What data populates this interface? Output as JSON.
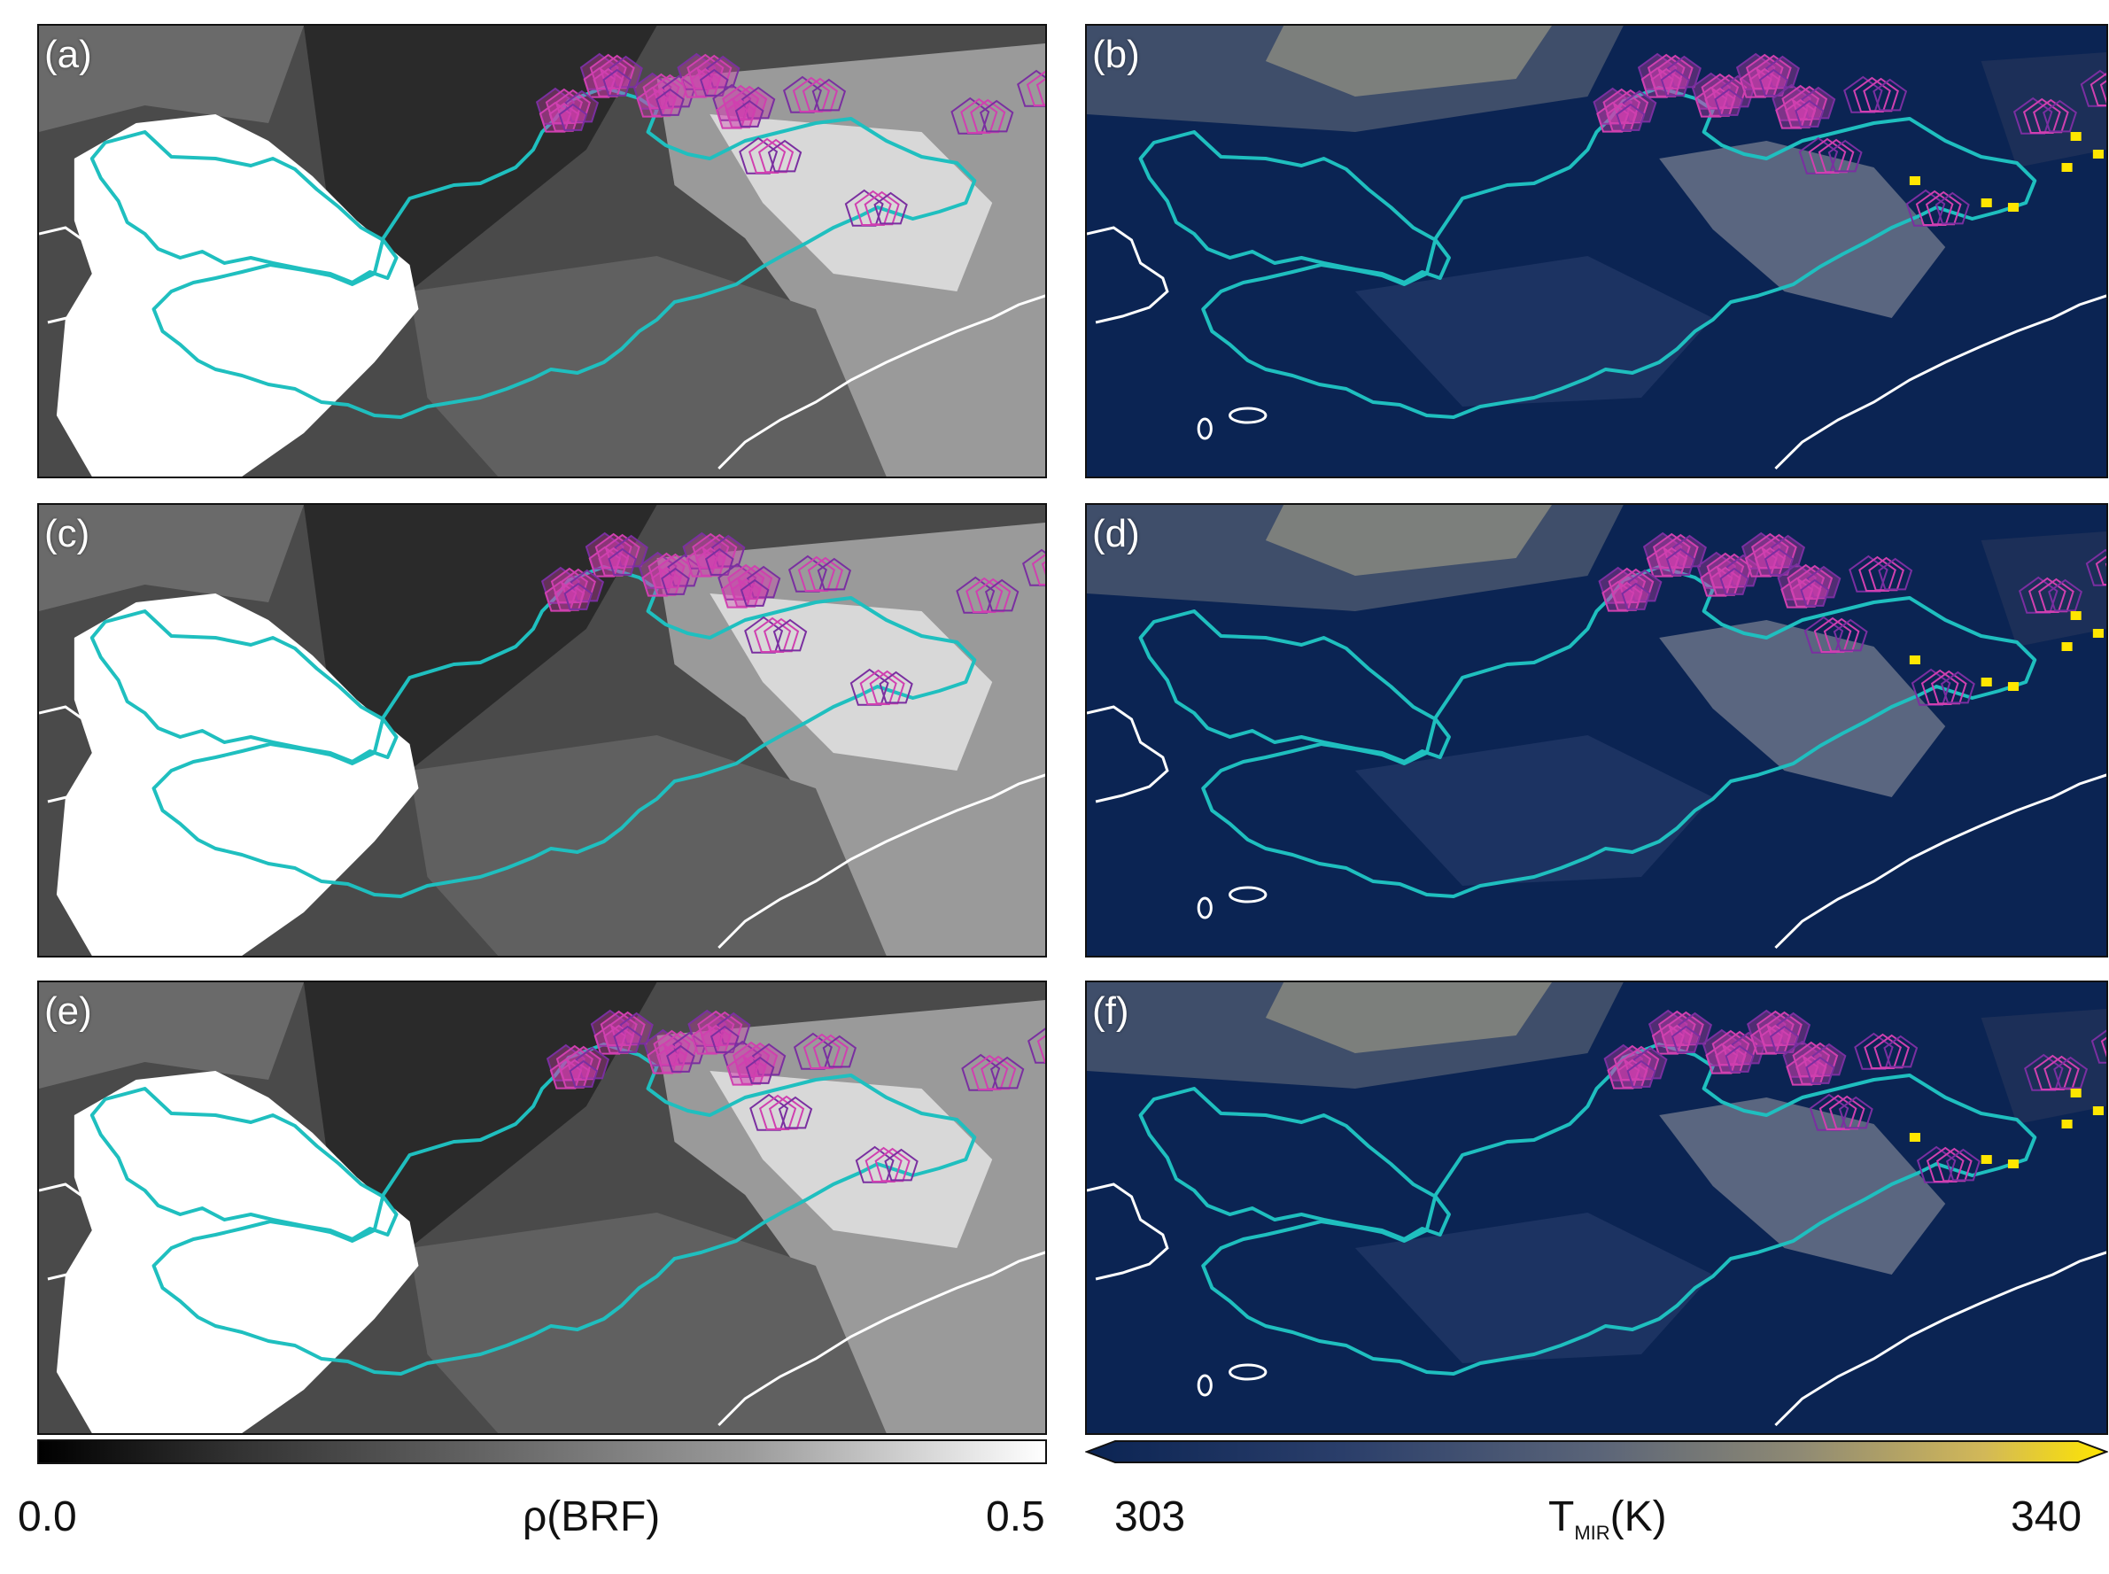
{
  "panels": [
    {
      "id": "a",
      "label": "(a)",
      "type": "reflectance"
    },
    {
      "id": "b",
      "label": "(b)",
      "type": "mir"
    },
    {
      "id": "c",
      "label": "(c)",
      "type": "reflectance"
    },
    {
      "id": "d",
      "label": "(d)",
      "type": "mir"
    },
    {
      "id": "e",
      "label": "(e)",
      "type": "reflectance"
    },
    {
      "id": "f",
      "label": "(f)",
      "type": "mir"
    }
  ],
  "colorbar_reflectance": {
    "min": "0.0",
    "max": "0.5",
    "label": "ρ(BRF)"
  },
  "colorbar_mir": {
    "min": "303",
    "max": "340",
    "label_main": "T",
    "label_sub": "MIR",
    "label_unit": "(K)"
  },
  "colors": {
    "contour_cyan": "#1fbfbf",
    "detection_magenta": "#d040b0",
    "detection_purple": "#7a2fa0",
    "coast_white": "#ffffff",
    "mir_dark": "#0b2453",
    "mir_hot": "#ffe600"
  }
}
